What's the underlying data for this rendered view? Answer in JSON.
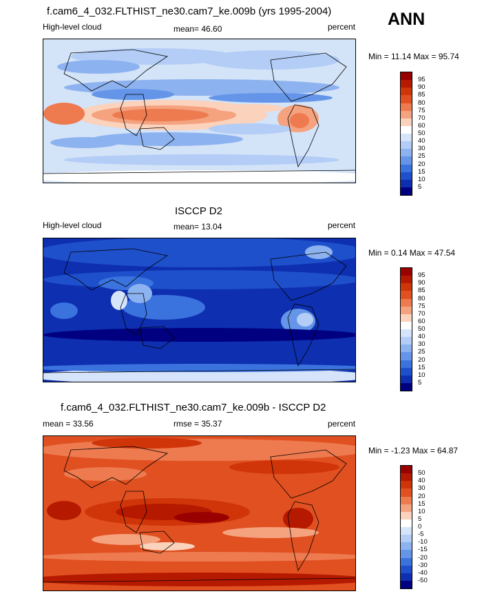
{
  "season": "ANN",
  "panels": [
    {
      "title": "f.cam6_4_032.FLTHIST_ne30.cam7_ke.009b (yrs 1995-2004)",
      "left_label": "High-level cloud",
      "center_label": "mean=  46.60",
      "right_label": "percent",
      "minmax": "Min =  11.14 Max =  95.74",
      "levels": [
        "95",
        "90",
        "85",
        "80",
        "75",
        "70",
        "60",
        "50",
        "40",
        "30",
        "25",
        "20",
        "15",
        "10",
        "5"
      ],
      "colors": [
        "#990000",
        "#b51a00",
        "#d0350a",
        "#e05020",
        "#ee7a4f",
        "#f5a27f",
        "#fbd2bb",
        "#ffffff",
        "#d6e4fb",
        "#b3cdf6",
        "#8db2f0",
        "#6495e8",
        "#3a72de",
        "#1f50cc",
        "#0d2fb0",
        "#000080"
      ],
      "background": "#d3e3f8"
    },
    {
      "title": "ISCCP D2",
      "left_label": "High-level cloud",
      "center_label": "mean=  13.04",
      "right_label": "percent",
      "minmax": "Min =  0.14 Max =  47.54",
      "levels": [
        "95",
        "90",
        "85",
        "80",
        "75",
        "70",
        "60",
        "50",
        "40",
        "30",
        "25",
        "20",
        "15",
        "10",
        "5"
      ],
      "colors": [
        "#990000",
        "#b51a00",
        "#d0350a",
        "#e05020",
        "#ee7a4f",
        "#f5a27f",
        "#fbd2bb",
        "#ffffff",
        "#d6e4fb",
        "#b3cdf6",
        "#8db2f0",
        "#6495e8",
        "#3a72de",
        "#1f50cc",
        "#0d2fb0",
        "#000080"
      ],
      "background": "#0d2fb0"
    },
    {
      "title": "f.cam6_4_032.FLTHIST_ne30.cam7_ke.009b - ISCCP D2",
      "left_label": "mean =  33.56",
      "center_label": "rmse =  35.37",
      "right_label": "percent",
      "minmax": "Min =  -1.23 Max =  64.87",
      "levels": [
        "50",
        "40",
        "30",
        "20",
        "15",
        "10",
        "5",
        "0",
        "-5",
        "-10",
        "-15",
        "-20",
        "-30",
        "-40",
        "-50"
      ],
      "colors": [
        "#990000",
        "#b51a00",
        "#d0350a",
        "#e05020",
        "#ee7a4f",
        "#f5a27f",
        "#fbd2bb",
        "#ffffff",
        "#d6e4fb",
        "#b3cdf6",
        "#8db2f0",
        "#6495e8",
        "#3a72de",
        "#1f50cc",
        "#0d2fb0",
        "#000080"
      ],
      "background": "#e05020"
    }
  ]
}
